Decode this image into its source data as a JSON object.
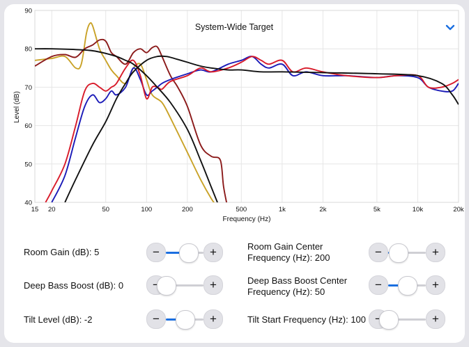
{
  "chart_data": {
    "type": "line",
    "title": "System-Wide Target",
    "xlabel": "Frequency (Hz)",
    "ylabel": "Level (dB)",
    "xscale": "log",
    "xlim": [
      15,
      20000
    ],
    "ylim": [
      40,
      90
    ],
    "x_ticks": [
      {
        "value": 15,
        "label": "15"
      },
      {
        "value": 20,
        "label": "20"
      },
      {
        "value": 50,
        "label": "50"
      },
      {
        "value": 100,
        "label": "100"
      },
      {
        "value": 200,
        "label": "200"
      },
      {
        "value": 500,
        "label": "500"
      },
      {
        "value": 1000,
        "label": "1k"
      },
      {
        "value": 2000,
        "label": "2k"
      },
      {
        "value": 5000,
        "label": "5k"
      },
      {
        "value": 10000,
        "label": "10k"
      },
      {
        "value": 20000,
        "label": "20k"
      }
    ],
    "y_ticks": [
      40,
      50,
      60,
      70,
      80,
      90
    ],
    "grid": true,
    "series": [
      {
        "name": "yellow-response",
        "color": "#c9a227",
        "x": [
          15,
          20,
          25,
          30,
          33,
          36,
          38,
          40,
          45,
          50,
          55,
          60,
          70,
          80,
          90,
          100,
          110,
          130,
          150,
          200,
          250,
          300,
          330
        ],
        "y": [
          77,
          77.5,
          78,
          75,
          76,
          84,
          86.5,
          86,
          80,
          77,
          74.5,
          73,
          71,
          75,
          76,
          72,
          68,
          66,
          62,
          53,
          46,
          41,
          39
        ]
      },
      {
        "name": "dark-red-response",
        "color": "#8b1a1a",
        "x": [
          15,
          20,
          25,
          30,
          35,
          40,
          45,
          50,
          55,
          60,
          70,
          80,
          90,
          100,
          110,
          120,
          130,
          150,
          170,
          200,
          250,
          300,
          350,
          370,
          400
        ],
        "y": [
          75.5,
          78,
          78.5,
          77.8,
          80,
          81,
          82.3,
          82,
          79,
          78,
          76,
          79,
          80,
          79,
          80.3,
          80.5,
          78,
          73,
          70,
          65,
          55,
          52,
          51,
          44,
          38
        ]
      },
      {
        "name": "blue-response",
        "color": "#1b1bb8",
        "x": [
          20,
          25,
          30,
          35,
          40,
          45,
          50,
          55,
          60,
          70,
          80,
          90,
          100,
          110,
          120,
          130,
          150,
          200,
          250,
          300,
          400,
          500,
          600,
          700,
          800,
          1000,
          1200,
          1500,
          2000,
          3000,
          5000,
          7000,
          10000,
          12000,
          15000,
          18000,
          20000
        ],
        "y": [
          40,
          47,
          57,
          65,
          68,
          66,
          67,
          69,
          68,
          70,
          75,
          72,
          68,
          69,
          70,
          71,
          72,
          73.5,
          74.5,
          74,
          76,
          77,
          78,
          76,
          75,
          76,
          73,
          74,
          73,
          73,
          72.5,
          73,
          72.5,
          70,
          69,
          69,
          71
        ]
      },
      {
        "name": "red-response",
        "color": "#d81b2a",
        "x": [
          18,
          20,
          25,
          30,
          35,
          40,
          45,
          50,
          55,
          60,
          70,
          80,
          90,
          100,
          110,
          120,
          130,
          150,
          200,
          250,
          300,
          400,
          500,
          600,
          700,
          800,
          1000,
          1200,
          1500,
          2000,
          3000,
          5000,
          7000,
          10000,
          12000,
          15000,
          18000,
          20000
        ],
        "y": [
          40,
          43,
          50,
          60,
          69,
          71,
          70,
          69,
          70,
          71,
          75,
          77,
          73,
          67,
          70,
          70,
          69.5,
          71.5,
          73,
          75,
          74,
          75,
          76.5,
          78,
          77,
          76,
          77,
          74,
          75,
          74,
          73,
          72.5,
          73,
          73,
          70,
          70,
          71,
          72
        ]
      },
      {
        "name": "target-low-rising",
        "color": "#111111",
        "x": [
          25,
          30,
          40,
          50,
          60,
          70,
          80,
          100,
          120,
          140,
          160,
          200,
          250,
          300,
          400,
          500,
          700,
          1000,
          2000,
          5000,
          10000,
          15000,
          18000,
          20000
        ],
        "y": [
          40,
          46,
          55,
          61,
          67,
          71,
          74,
          77,
          78,
          78,
          77.5,
          76.5,
          75.5,
          75,
          74.5,
          74.5,
          74,
          74,
          73.8,
          73.5,
          73,
          71,
          68,
          65.5
        ]
      },
      {
        "name": "target-high-falling",
        "color": "#111111",
        "x": [
          15,
          20,
          30,
          40,
          50,
          60,
          70,
          80,
          100,
          120,
          150,
          200,
          250,
          300,
          350,
          380
        ],
        "y": [
          80,
          80,
          79.8,
          79.5,
          78.8,
          78,
          77,
          76,
          73,
          70,
          66,
          59,
          51,
          44,
          38,
          34
        ]
      }
    ]
  },
  "header": {
    "dropdown_icon": "chevron-down-icon",
    "accent_color": "#1b6fe0"
  },
  "controls": [
    {
      "label": "Room Gain (dB): 5",
      "value": 0.6
    },
    {
      "label": "Room Gain Center Frequency (Hz): 200",
      "value": 0.25
    },
    {
      "label": "Deep Bass Boost (dB): 0",
      "value": 0.0
    },
    {
      "label": "Deep Bass Boost Center Frequency (Hz): 50",
      "value": 0.5
    },
    {
      "label": "Tilt Level (dB): -2",
      "value": 0.5
    },
    {
      "label": "Tilt Start Frequency (Hz): 100",
      "value": 0.0
    }
  ],
  "stepper": {
    "minus": "−",
    "plus": "+"
  }
}
